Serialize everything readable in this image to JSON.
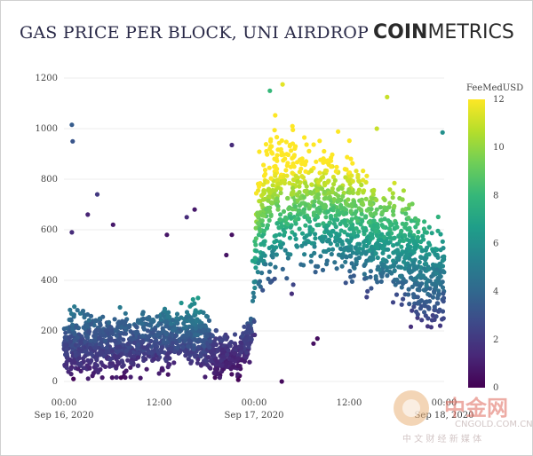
{
  "header": {
    "title": "GAS PRICE PER BLOCK, UNI AIRDROP",
    "brand_bold": "COIN",
    "brand_light": "METRICS"
  },
  "colorbar": {
    "title": "FeeMedUSD",
    "min": 0,
    "max": 12,
    "ticks": [
      "0",
      "2",
      "4",
      "6",
      "8",
      "10",
      "12"
    ],
    "colors": [
      "#440154",
      "#482878",
      "#3e4989",
      "#31688e",
      "#26828e",
      "#1f9e89",
      "#35b779",
      "#6ece58",
      "#b5de2b",
      "#fde725"
    ]
  },
  "watermark": {
    "name": "中金网",
    "url": "CNGOLD.COM.CN",
    "tagline": "中 文 财 经 新 媒 体"
  },
  "chart_data": {
    "type": "scatter",
    "title": "GAS PRICE PER BLOCK, UNI AIRDROP",
    "x_range": [
      "2020-09-16 00:00",
      "2020-09-18 00:00"
    ],
    "ylim": [
      0,
      1200
    ],
    "y_ticks": [
      "0",
      "200",
      "400",
      "600",
      "800",
      "1000",
      "1200"
    ],
    "x_ticks": [
      {
        "line1": "00:00",
        "line2": "Sep 16, 2020"
      },
      {
        "line1": "12:00",
        "line2": ""
      },
      {
        "line1": "00:00",
        "line2": "Sep 17, 2020"
      },
      {
        "line1": "12:00",
        "line2": ""
      },
      {
        "line1": "00:00",
        "line2": "Sep 18, 2020"
      }
    ],
    "color_variable": "FeeMedUSD",
    "color_range": [
      0,
      12
    ],
    "grid": true,
    "density_profile": [
      {
        "hour": 0,
        "median": 150,
        "spread": 55,
        "fee": 2.8
      },
      {
        "hour": 6,
        "median": 150,
        "spread": 60,
        "fee": 2.7
      },
      {
        "hour": 9,
        "median": 145,
        "spread": 50,
        "fee": 2.6
      },
      {
        "hour": 12,
        "median": 165,
        "spread": 55,
        "fee": 3.0
      },
      {
        "hour": 15,
        "median": 185,
        "spread": 55,
        "fee": 3.6
      },
      {
        "hour": 17,
        "median": 190,
        "spread": 60,
        "fee": 3.8
      },
      {
        "hour": 19,
        "median": 110,
        "spread": 45,
        "fee": 1.8
      },
      {
        "hour": 22,
        "median": 90,
        "spread": 35,
        "fee": 1.3
      },
      {
        "hour": 23.5,
        "median": 150,
        "spread": 50,
        "fee": 2.2
      },
      {
        "hour": 24.5,
        "median": 600,
        "spread": 120,
        "fee": 8.5
      },
      {
        "hour": 26,
        "median": 700,
        "spread": 130,
        "fee": 9.5
      },
      {
        "hour": 30,
        "median": 720,
        "spread": 130,
        "fee": 9.5
      },
      {
        "hour": 34,
        "median": 680,
        "spread": 120,
        "fee": 8.5
      },
      {
        "hour": 38,
        "median": 600,
        "spread": 110,
        "fee": 7.5
      },
      {
        "hour": 42,
        "median": 530,
        "spread": 100,
        "fee": 6.5
      },
      {
        "hour": 46,
        "median": 420,
        "spread": 100,
        "fee": 5.0
      },
      {
        "hour": 48,
        "median": 440,
        "spread": 100,
        "fee": 5.0
      }
    ],
    "outliers": [
      {
        "hour": 1.0,
        "value": 1015,
        "fee": 3.5
      },
      {
        "hour": 1.1,
        "value": 950,
        "fee": 3.2
      },
      {
        "hour": 1.0,
        "value": 590,
        "fee": 1.5
      },
      {
        "hour": 4.2,
        "value": 740,
        "fee": 2.0
      },
      {
        "hour": 3.0,
        "value": 660,
        "fee": 1.2
      },
      {
        "hour": 6.2,
        "value": 620,
        "fee": 0.8
      },
      {
        "hour": 16.5,
        "value": 680,
        "fee": 0.8
      },
      {
        "hour": 15.5,
        "value": 650,
        "fee": 1.5
      },
      {
        "hour": 13.0,
        "value": 580,
        "fee": 0.7
      },
      {
        "hour": 21.2,
        "value": 935,
        "fee": 1.5
      },
      {
        "hour": 21.2,
        "value": 580,
        "fee": 0.5
      },
      {
        "hour": 20.5,
        "value": 500,
        "fee": 0.6
      },
      {
        "hour": 26.0,
        "value": 1150,
        "fee": 8.0
      },
      {
        "hour": 27.6,
        "value": 1175,
        "fee": 11.5
      },
      {
        "hour": 40.8,
        "value": 1125,
        "fee": 11.0
      },
      {
        "hour": 39.5,
        "value": 1000,
        "fee": 11.0
      },
      {
        "hour": 47.8,
        "value": 985,
        "fee": 6.0
      },
      {
        "hour": 27.5,
        "value": 0,
        "fee": 0.3
      },
      {
        "hour": 32.0,
        "value": 170,
        "fee": 0.4
      },
      {
        "hour": 31.5,
        "value": 150,
        "fee": 0.5
      },
      {
        "hour": 1.2,
        "value": 10,
        "fee": 0.2
      },
      {
        "hour": 7.2,
        "value": 15,
        "fee": 0.2
      }
    ]
  }
}
